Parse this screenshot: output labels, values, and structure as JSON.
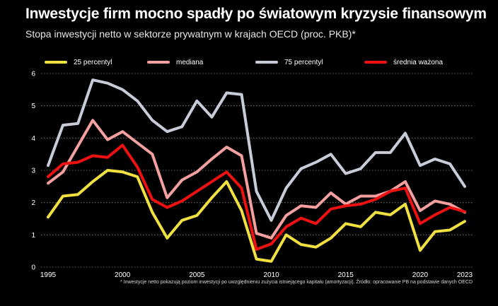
{
  "title": "Inwestycje firm mocno spadły po światowym kryzysie finansowym",
  "subtitle": "Stopa inwestycji netto w sektorze prywatnym w krajach OECD (proc. PKB)*",
  "footnote": "* Inwestycje netto pokazują poziom inwestycji po uwzględnieniu zużycia istniejącego kapitału (amortyzacji). Źródło: opracowanie PB na podstawie danych OECD",
  "chart_data": {
    "type": "line",
    "x": [
      1995,
      1996,
      1997,
      1998,
      1999,
      2000,
      2001,
      2002,
      2003,
      2004,
      2005,
      2006,
      2007,
      2008,
      2009,
      2010,
      2011,
      2012,
      2013,
      2014,
      2015,
      2016,
      2017,
      2018,
      2019,
      2020,
      2021,
      2022,
      2023
    ],
    "xticks": [
      1995,
      2000,
      2005,
      2010,
      2015,
      2020,
      2023
    ],
    "yticks": [
      0,
      1,
      2,
      3,
      4,
      5,
      6
    ],
    "ylim": [
      0,
      6
    ],
    "xlim": [
      1995,
      2023
    ],
    "grid": "horizontal dotted",
    "legend_position": "top",
    "series": [
      {
        "name": "25 percentyl",
        "color": "#f0e040",
        "values": [
          1.55,
          2.2,
          2.25,
          2.65,
          3.0,
          2.95,
          2.8,
          1.7,
          0.9,
          1.45,
          1.6,
          2.15,
          2.65,
          1.75,
          0.25,
          0.18,
          1.0,
          0.7,
          0.62,
          0.9,
          1.35,
          1.25,
          1.7,
          1.62,
          1.95,
          0.52,
          1.1,
          1.15,
          1.42
        ]
      },
      {
        "name": "mediana",
        "color": "#f4a0a0",
        "values": [
          2.6,
          2.95,
          3.75,
          4.55,
          3.95,
          4.2,
          3.85,
          3.5,
          2.15,
          2.7,
          2.95,
          3.35,
          3.72,
          3.45,
          1.05,
          0.9,
          1.6,
          1.9,
          1.85,
          2.3,
          1.95,
          2.2,
          2.2,
          2.35,
          2.65,
          1.75,
          2.05,
          1.95,
          1.7
        ]
      },
      {
        "name": "75 percentyl",
        "color": "#c8ccd8",
        "values": [
          3.15,
          4.4,
          4.45,
          5.8,
          5.7,
          5.5,
          5.15,
          4.55,
          4.2,
          4.35,
          5.15,
          4.65,
          5.4,
          5.35,
          2.35,
          1.45,
          2.45,
          3.05,
          3.25,
          3.5,
          2.9,
          3.05,
          3.55,
          3.55,
          4.15,
          3.15,
          3.35,
          3.2,
          2.5
        ]
      },
      {
        "name": "średnia ważona",
        "color": "#ee1111",
        "values": [
          2.8,
          3.2,
          3.25,
          3.45,
          3.4,
          3.78,
          3.1,
          2.1,
          1.85,
          2.05,
          2.35,
          2.65,
          2.95,
          2.45,
          0.55,
          0.72,
          1.25,
          1.52,
          1.35,
          1.8,
          1.9,
          1.95,
          2.1,
          2.35,
          2.45,
          1.35,
          1.62,
          1.85,
          1.72
        ]
      }
    ]
  }
}
